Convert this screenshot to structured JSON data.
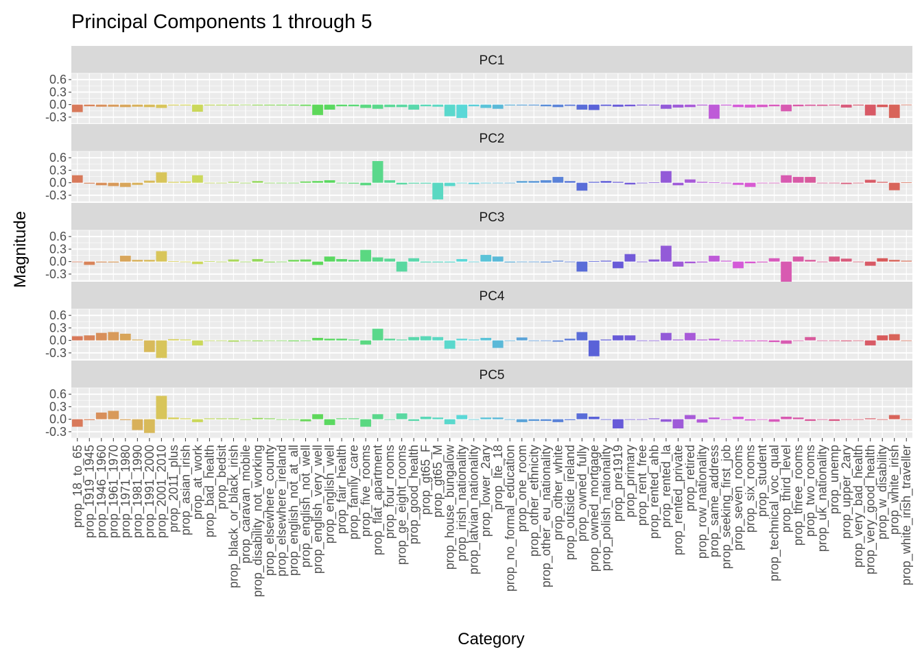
{
  "chart_data": {
    "type": "bar",
    "title": "Principal Components 1 through 5",
    "xlabel": "Category",
    "ylabel": "Magnitude",
    "ylim": [
      -0.45,
      0.75
    ],
    "yticks": [
      "0.6",
      "0.3",
      "0.0",
      "-0.3"
    ],
    "ytick_values": [
      0.6,
      0.3,
      0.0,
      -0.3
    ],
    "grid": true,
    "legend": "none",
    "facets": [
      "PC1",
      "PC2",
      "PC3",
      "PC4",
      "PC5"
    ],
    "categories": [
      "prop_18_to_65",
      "prop_1919_1945",
      "prop_1946_1960",
      "prop_1961_1970",
      "prop_1971_1980",
      "prop_1981_1990",
      "prop_1991_2000",
      "prop_2001_2010",
      "prop_2011_plus",
      "prop_asian_irish",
      "prop_at_work",
      "prop_bad_health",
      "prop_bedsit",
      "prop_black_or_black_irish",
      "prop_caravan_mobile",
      "prop_disability_not_working",
      "prop_elsewhere_county",
      "prop_elsewhere_ireland",
      "prop_english_not_at_all",
      "prop_english_not_well",
      "prop_english_very_well",
      "prop_english_well",
      "prop_fair_health",
      "prop_family_care",
      "prop_five_rooms",
      "prop_flat_apartment",
      "prop_four_rooms",
      "prop_ge_eight_rooms",
      "prop_good_health",
      "prop_gt65_F",
      "prop_gt65_M",
      "prop_house_bungalow",
      "prop_irish_nationality",
      "prop_latvian_nationality",
      "prop_lower_2ary",
      "prop_lte_18",
      "prop_no_formal_education",
      "prop_one_room",
      "prop_other_ethnicity",
      "prop_other_eu_nationality",
      "prop_other_white",
      "prop_outside_ireland",
      "prop_owned_fully",
      "prop_owned_mortgage",
      "prop_polish_nationality",
      "prop_pre1919",
      "prop_primary",
      "prop_rent_free",
      "prop_rented_ahb",
      "prop_rented_la",
      "prop_rented_private",
      "prop_retired",
      "prop_row_nationality",
      "prop_same_address",
      "prop_seeking_first_job",
      "prop_seven_rooms",
      "prop_six_rooms",
      "prop_student",
      "prop_technical_voc_qual",
      "prop_third_level",
      "prop_three_rooms",
      "prop_two_rooms",
      "prop_uk_nationality",
      "prop_unemp",
      "prop_upper_2ary",
      "prop_very_bad_health",
      "prop_very_good_health",
      "prop_w_disability",
      "prop_white_irish",
      "prop_white_irish_traveller"
    ],
    "series": [
      {
        "name": "PC1",
        "values": [
          -0.18,
          -0.04,
          -0.05,
          -0.05,
          -0.06,
          -0.05,
          -0.06,
          -0.08,
          -0.02,
          -0.02,
          -0.17,
          -0.02,
          -0.02,
          -0.02,
          -0.01,
          -0.02,
          -0.02,
          -0.02,
          -0.02,
          -0.03,
          -0.25,
          -0.12,
          -0.04,
          -0.04,
          -0.08,
          -0.1,
          -0.06,
          -0.06,
          -0.12,
          -0.04,
          -0.05,
          -0.28,
          -0.32,
          -0.04,
          -0.08,
          -0.1,
          -0.02,
          -0.02,
          -0.02,
          -0.04,
          -0.06,
          -0.03,
          -0.12,
          -0.13,
          -0.03,
          -0.05,
          -0.04,
          -0.02,
          -0.02,
          -0.1,
          -0.07,
          -0.06,
          -0.02,
          -0.34,
          -0.02,
          -0.06,
          -0.07,
          -0.06,
          -0.04,
          -0.16,
          -0.04,
          -0.03,
          -0.03,
          -0.02,
          -0.07,
          -0.02,
          -0.26,
          -0.06,
          -0.32,
          -0.01
        ]
      },
      {
        "name": "PC2",
        "values": [
          0.18,
          -0.02,
          -0.06,
          -0.08,
          -0.1,
          -0.05,
          0.05,
          0.25,
          0.02,
          0.03,
          0.18,
          0.0,
          0.0,
          0.02,
          0.0,
          0.04,
          0.0,
          0.0,
          0.0,
          0.03,
          0.04,
          0.06,
          0.0,
          -0.02,
          -0.06,
          0.52,
          0.06,
          -0.04,
          -0.02,
          -0.02,
          -0.4,
          -0.08,
          0.0,
          -0.03,
          0.0,
          0.0,
          0.0,
          0.04,
          0.04,
          0.06,
          0.14,
          0.04,
          -0.19,
          0.02,
          0.04,
          0.02,
          -0.04,
          0.0,
          0.01,
          0.28,
          -0.06,
          0.08,
          0.02,
          0.01,
          0.0,
          -0.05,
          -0.1,
          0.0,
          0.0,
          0.18,
          0.14,
          0.14,
          0.0,
          0.0,
          -0.03,
          0.0,
          0.07,
          0.02,
          -0.18,
          0.01
        ]
      },
      {
        "name": "PC3",
        "values": [
          0.0,
          -0.08,
          -0.02,
          -0.02,
          0.14,
          0.04,
          0.04,
          0.25,
          0.01,
          0.0,
          -0.06,
          0.01,
          0.0,
          0.05,
          0.0,
          0.06,
          -0.02,
          0.0,
          0.04,
          0.05,
          -0.08,
          0.12,
          0.06,
          0.04,
          0.28,
          0.1,
          0.07,
          -0.24,
          0.08,
          -0.02,
          -0.02,
          -0.02,
          0.06,
          0.0,
          0.16,
          0.12,
          -0.02,
          -0.01,
          0.0,
          -0.02,
          0.02,
          0.0,
          -0.24,
          0.01,
          0.02,
          -0.16,
          0.18,
          0.0,
          0.05,
          0.38,
          -0.12,
          -0.04,
          -0.02,
          0.14,
          0.02,
          -0.16,
          -0.04,
          -0.02,
          0.08,
          -0.5,
          0.12,
          0.04,
          0.0,
          0.12,
          0.07,
          0.0,
          -0.1,
          0.08,
          0.04,
          0.02
        ]
      },
      {
        "name": "PC4",
        "values": [
          0.1,
          0.12,
          0.18,
          0.2,
          0.16,
          0.02,
          -0.28,
          -0.42,
          0.03,
          0.02,
          -0.12,
          0.0,
          0.0,
          -0.03,
          0.0,
          -0.02,
          0.0,
          0.0,
          -0.02,
          0.0,
          0.06,
          0.04,
          0.04,
          0.02,
          -0.1,
          0.28,
          0.04,
          0.02,
          0.08,
          0.1,
          0.08,
          -0.2,
          0.04,
          0.02,
          0.06,
          -0.18,
          0.0,
          0.07,
          0.0,
          0.0,
          -0.03,
          0.04,
          0.2,
          -0.38,
          0.02,
          0.12,
          0.12,
          0.0,
          0.0,
          0.18,
          0.02,
          0.18,
          0.02,
          0.04,
          0.0,
          -0.02,
          -0.02,
          -0.02,
          -0.04,
          -0.08,
          0.0,
          0.08,
          0.0,
          -0.01,
          -0.02,
          0.0,
          -0.12,
          0.12,
          0.15,
          0.0
        ]
      },
      {
        "name": "PC5",
        "values": [
          -0.18,
          -0.02,
          0.16,
          0.2,
          -0.02,
          -0.26,
          -0.33,
          0.56,
          0.04,
          0.02,
          -0.07,
          0.02,
          0.02,
          0.02,
          0.0,
          0.03,
          0.02,
          0.0,
          0.0,
          -0.05,
          0.12,
          -0.14,
          0.02,
          0.02,
          -0.18,
          0.12,
          0.0,
          0.14,
          -0.04,
          0.06,
          0.04,
          -0.12,
          0.1,
          0.0,
          0.04,
          0.04,
          0.0,
          -0.07,
          -0.04,
          -0.04,
          -0.07,
          -0.02,
          0.14,
          0.06,
          0.0,
          -0.22,
          0.0,
          0.0,
          0.02,
          -0.06,
          -0.22,
          0.1,
          -0.08,
          0.04,
          0.0,
          0.06,
          -0.03,
          0.0,
          -0.06,
          0.06,
          0.04,
          -0.04,
          0.0,
          -0.04,
          0.0,
          0.0,
          0.02,
          0.0,
          0.1,
          0.0
        ]
      }
    ]
  }
}
